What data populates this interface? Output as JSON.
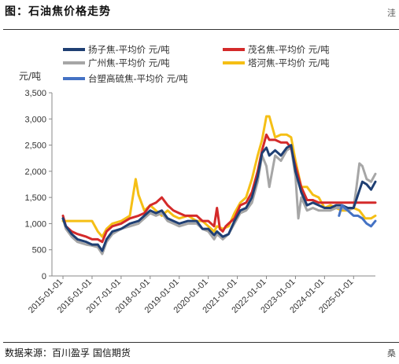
{
  "title": "图：石油焦价格走势",
  "source": "数据来源：百川盈孚 国信期货",
  "edge_marks": {
    "top": "洼",
    "bottom": "桑"
  },
  "chart_data": {
    "type": "line",
    "title": "",
    "ylabel": "元/吨",
    "xlabel": "",
    "ylim": [
      0,
      3500
    ],
    "yticks": [
      0,
      500,
      1000,
      1500,
      2000,
      2500,
      3000,
      3500
    ],
    "ytick_labels": [
      "0",
      "500",
      "1,000",
      "1,500",
      "2,000",
      "2,500",
      "3,000",
      "3,500"
    ],
    "xlim": [
      2014.62,
      2025.75
    ],
    "xticks": [
      2015,
      2016,
      2017,
      2018,
      2019,
      2020,
      2021,
      2022,
      2023,
      2024,
      2025
    ],
    "xtick_labels": [
      "2015-01-01",
      "2016-01-01",
      "2017-01-01",
      "2018-01-01",
      "2019-01-01",
      "2020-01-01",
      "2021-01-01",
      "2022-01-01",
      "2023-01-01",
      "2024-01-01",
      "2025-01-01"
    ],
    "grid": false,
    "legend_position": "top",
    "series": [
      {
        "name": "扬子焦-平均价 元/吨",
        "color": "#1f3f73",
        "x": [
          2015.0,
          2015.1,
          2015.3,
          2015.5,
          2015.8,
          2016.0,
          2016.2,
          2016.35,
          2016.5,
          2016.7,
          2017.0,
          2017.3,
          2017.6,
          2017.8,
          2018.0,
          2018.2,
          2018.4,
          2018.6,
          2018.8,
          2019.0,
          2019.3,
          2019.6,
          2019.8,
          2020.0,
          2020.2,
          2020.3,
          2020.5,
          2020.7,
          2020.9,
          2021.1,
          2021.3,
          2021.5,
          2021.7,
          2021.85,
          2022.0,
          2022.1,
          2022.3,
          2022.5,
          2022.7,
          2022.85,
          2023.0,
          2023.2,
          2023.4,
          2023.6,
          2023.8,
          2024.0,
          2024.2,
          2024.4,
          2024.6,
          2024.8,
          2025.0,
          2025.15,
          2025.3,
          2025.45,
          2025.6,
          2025.75
        ],
        "y": [
          1100,
          950,
          800,
          700,
          650,
          600,
          600,
          480,
          700,
          850,
          900,
          1000,
          1050,
          1150,
          1250,
          1200,
          1250,
          1100,
          1050,
          1000,
          1050,
          1050,
          900,
          900,
          780,
          850,
          750,
          800,
          1050,
          1250,
          1300,
          1500,
          1900,
          2350,
          2450,
          2300,
          2400,
          2300,
          2450,
          2500,
          2000,
          1600,
          1350,
          1400,
          1350,
          1300,
          1300,
          1350,
          1350,
          1300,
          1300,
          1550,
          1800,
          1750,
          1650,
          1800
        ]
      },
      {
        "name": "茂名焦-平均价 元/吨",
        "color": "#d42a2a",
        "x": [
          2015.0,
          2015.1,
          2015.3,
          2015.5,
          2015.8,
          2016.0,
          2016.2,
          2016.35,
          2016.5,
          2016.7,
          2017.0,
          2017.3,
          2017.6,
          2017.8,
          2018.0,
          2018.2,
          2018.4,
          2018.6,
          2018.8,
          2019.0,
          2019.2,
          2019.4,
          2019.6,
          2019.8,
          2020.0,
          2020.2,
          2020.3,
          2020.4,
          2020.5,
          2020.6,
          2020.7,
          2020.9,
          2021.1,
          2021.3,
          2021.5,
          2021.7,
          2021.85,
          2022.0,
          2022.1,
          2022.3,
          2022.5,
          2022.7,
          2022.85,
          2023.0,
          2023.2,
          2023.4,
          2023.6,
          2023.8,
          2024.0,
          2024.2,
          2024.4,
          2024.6,
          2024.8,
          2025.0,
          2025.2,
          2025.4,
          2025.6,
          2025.75
        ],
        "y": [
          1150,
          950,
          850,
          800,
          750,
          700,
          700,
          650,
          850,
          950,
          1000,
          1100,
          1150,
          1200,
          1350,
          1400,
          1500,
          1350,
          1250,
          1200,
          1150,
          1150,
          1150,
          1050,
          1050,
          950,
          1300,
          900,
          850,
          950,
          1000,
          1100,
          1350,
          1400,
          1600,
          2000,
          2400,
          2700,
          2600,
          2600,
          2550,
          2550,
          2450,
          2100,
          1700,
          1450,
          1450,
          1400,
          1400,
          1400,
          1400,
          1400,
          1400,
          1400,
          1400,
          1400,
          1400,
          1400
        ]
      },
      {
        "name": "广州焦-平均价 元/吨",
        "color": "#a6a6a6",
        "x": [
          2015.0,
          2015.1,
          2015.3,
          2015.5,
          2015.8,
          2016.0,
          2016.2,
          2016.35,
          2016.5,
          2016.7,
          2017.0,
          2017.3,
          2017.6,
          2017.8,
          2018.0,
          2018.2,
          2018.4,
          2018.6,
          2018.8,
          2019.0,
          2019.3,
          2019.6,
          2019.8,
          2020.0,
          2020.2,
          2020.3,
          2020.5,
          2020.7,
          2020.9,
          2021.1,
          2021.3,
          2021.5,
          2021.7,
          2021.85,
          2022.0,
          2022.1,
          2022.3,
          2022.5,
          2022.7,
          2022.85,
          2023.0,
          2023.1,
          2023.2,
          2023.4,
          2023.6,
          2023.8,
          2024.0,
          2024.2,
          2024.4,
          2024.6,
          2024.8,
          2025.0,
          2025.1,
          2025.2,
          2025.3,
          2025.45,
          2025.6,
          2025.75
        ],
        "y": [
          1100,
          900,
          750,
          650,
          600,
          580,
          550,
          420,
          650,
          800,
          900,
          950,
          1000,
          1100,
          1200,
          1150,
          1200,
          1050,
          1000,
          950,
          1000,
          1000,
          900,
          850,
          700,
          800,
          700,
          800,
          1000,
          1200,
          1250,
          1400,
          1800,
          2300,
          2100,
          1700,
          2300,
          2200,
          2400,
          2450,
          1900,
          1100,
          1500,
          1250,
          1300,
          1250,
          1250,
          1250,
          1300,
          1300,
          1250,
          1300,
          1700,
          2150,
          2100,
          1850,
          1800,
          1950
        ]
      },
      {
        "name": "塔河焦-平均价 元/吨",
        "color": "#f5bf15",
        "x": [
          2015.0,
          2015.1,
          2015.3,
          2015.5,
          2015.8,
          2016.0,
          2016.2,
          2016.35,
          2016.5,
          2016.7,
          2017.0,
          2017.3,
          2017.5,
          2017.6,
          2017.8,
          2018.0,
          2018.2,
          2018.4,
          2018.6,
          2018.8,
          2019.0,
          2019.3,
          2019.6,
          2019.8,
          2020.0,
          2020.2,
          2020.3,
          2020.5,
          2020.7,
          2020.9,
          2021.1,
          2021.3,
          2021.5,
          2021.7,
          2021.85,
          2022.0,
          2022.1,
          2022.3,
          2022.5,
          2022.7,
          2022.85,
          2023.0,
          2023.2,
          2023.4,
          2023.6,
          2023.8,
          2024.0,
          2024.2,
          2024.4,
          2024.6,
          2024.8,
          2025.0,
          2025.2,
          2025.4,
          2025.6,
          2025.75
        ],
        "y": [
          1050,
          1050,
          1050,
          1050,
          1050,
          1050,
          850,
          750,
          900,
          1000,
          1050,
          1150,
          1850,
          1550,
          1250,
          1350,
          1250,
          1150,
          1250,
          1150,
          1100,
          1150,
          1050,
          1050,
          950,
          850,
          950,
          900,
          950,
          1200,
          1400,
          1500,
          1850,
          2300,
          2600,
          3050,
          3050,
          2650,
          2700,
          2700,
          2650,
          2200,
          1700,
          1700,
          1550,
          1500,
          1300,
          1350,
          1300,
          1250,
          1250,
          1300,
          1250,
          1100,
          1100,
          1150
        ]
      },
      {
        "name": "台塑高硫焦-平均价 元/吨",
        "color": "#4472c4",
        "x": [
          2024.5,
          2024.6,
          2024.7,
          2024.8,
          2024.9,
          2025.0,
          2025.15,
          2025.3,
          2025.45,
          2025.6,
          2025.75
        ],
        "y": [
          1150,
          1350,
          1300,
          1250,
          1200,
          1150,
          1150,
          1100,
          1000,
          950,
          1050
        ]
      }
    ]
  }
}
